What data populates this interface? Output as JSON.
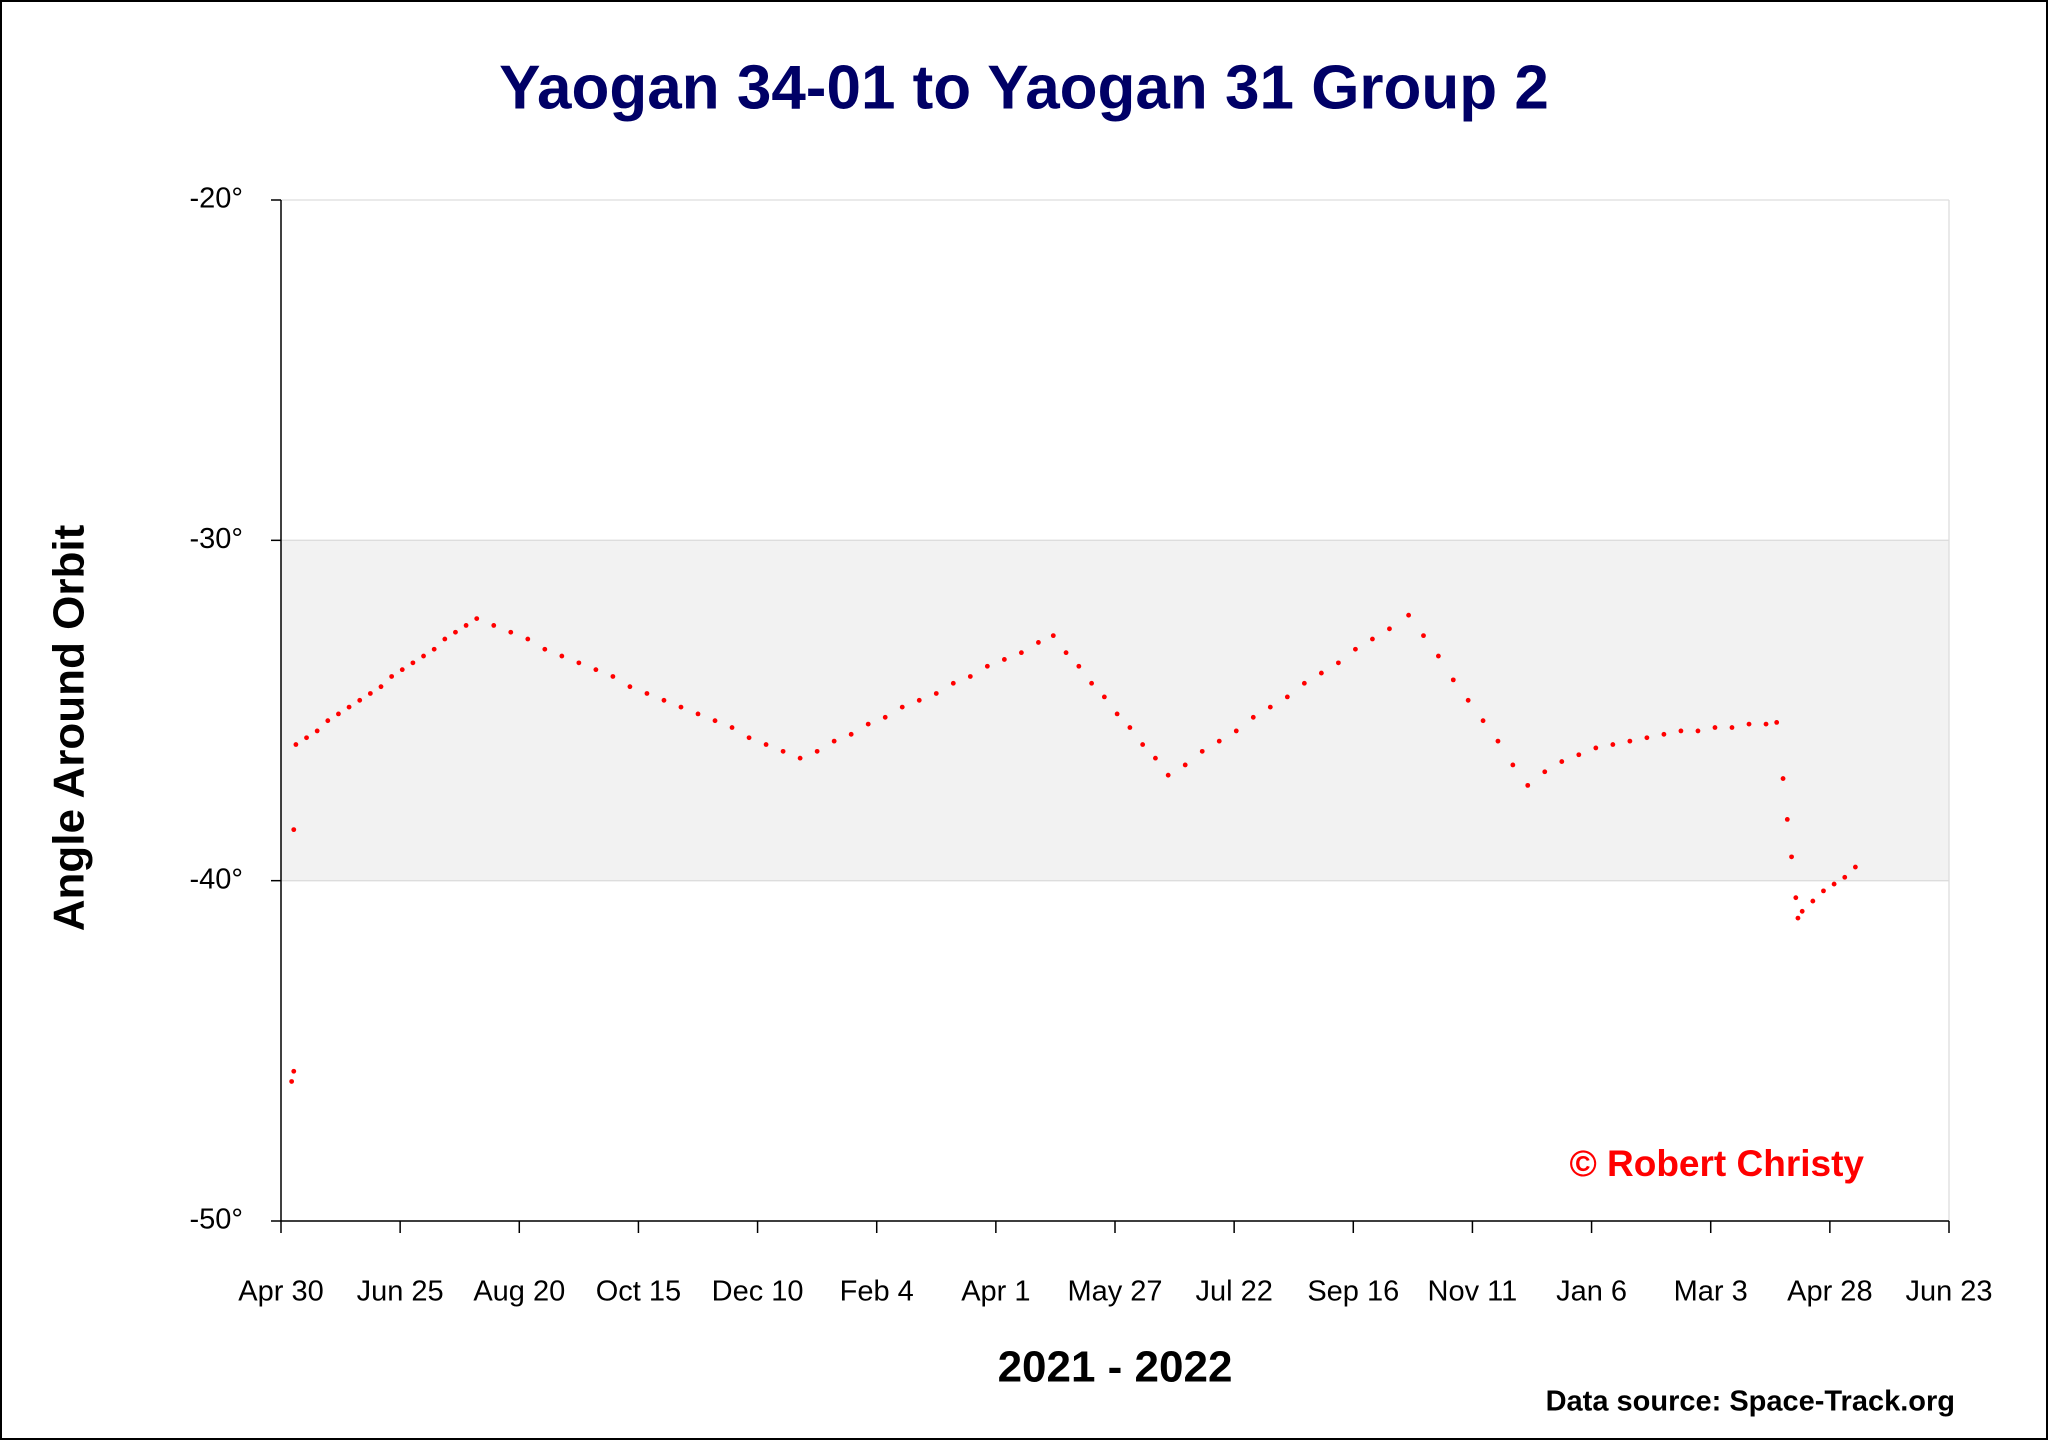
{
  "chart_data": {
    "type": "scatter",
    "title": "Yaogan 34-01 to Yaogan 31 Group 2",
    "x_label": "2021 - 2022",
    "y_label": "Angle Around Orbit",
    "annotations": [
      "© Robert Christy",
      "Data source: Space-Track.org"
    ],
    "xlim": [
      0,
      784
    ],
    "xticks": [
      {
        "value": 0,
        "label": "Apr 30"
      },
      {
        "value": 56,
        "label": "Jun 25"
      },
      {
        "value": 112,
        "label": "Aug 20"
      },
      {
        "value": 168,
        "label": "Oct 15"
      },
      {
        "value": 224,
        "label": "Dec 10"
      },
      {
        "value": 280,
        "label": "Feb 4"
      },
      {
        "value": 336,
        "label": "Apr 1"
      },
      {
        "value": 392,
        "label": "May 27"
      },
      {
        "value": 448,
        "label": "Jul 22"
      },
      {
        "value": 504,
        "label": "Sep 16"
      },
      {
        "value": 560,
        "label": "Nov 11"
      },
      {
        "value": 616,
        "label": "Jan 6"
      },
      {
        "value": 672,
        "label": "Mar 3"
      },
      {
        "value": 728,
        "label": "Apr 28"
      },
      {
        "value": 784,
        "label": "Jun 23"
      }
    ],
    "ylim": [
      -50,
      -20
    ],
    "yticks": [
      {
        "value": -20,
        "label": "-20°"
      },
      {
        "value": -30,
        "label": "-30°"
      },
      {
        "value": -40,
        "label": "-40°"
      },
      {
        "value": -50,
        "label": "-50°"
      }
    ],
    "shaded_range": [
      -40,
      -30
    ],
    "shaded_color": "#f2f2f2",
    "grid": true,
    "series": [
      {
        "name": "Yaogan 34-01",
        "color": "#ff0000",
        "x": [
          5,
          6,
          6,
          7,
          12,
          17,
          22,
          27,
          32,
          37,
          42,
          47,
          52,
          57,
          62,
          67,
          72,
          77,
          82,
          87,
          92,
          100,
          108,
          116,
          124,
          132,
          140,
          148,
          156,
          164,
          172,
          180,
          188,
          196,
          204,
          212,
          220,
          228,
          236,
          244,
          252,
          260,
          268,
          276,
          284,
          292,
          300,
          308,
          316,
          324,
          332,
          340,
          348,
          356,
          363,
          369,
          375,
          381,
          387,
          393,
          399,
          405,
          411,
          417,
          425,
          433,
          441,
          449,
          457,
          465,
          473,
          481,
          489,
          497,
          505,
          513,
          521,
          530,
          537,
          544,
          551,
          558,
          565,
          572,
          579,
          586,
          594,
          602,
          610,
          618,
          626,
          634,
          642,
          650,
          658,
          666,
          674,
          682,
          690,
          698,
          703,
          706,
          708,
          710,
          712,
          713,
          715,
          720,
          725,
          730,
          735,
          740
        ],
        "values": [
          -45.9,
          -45.6,
          -38.5,
          -36.0,
          -35.8,
          -35.6,
          -35.3,
          -35.1,
          -34.9,
          -34.7,
          -34.5,
          -34.3,
          -34.0,
          -33.8,
          -33.6,
          -33.4,
          -33.2,
          -32.9,
          -32.7,
          -32.5,
          -32.3,
          -32.5,
          -32.7,
          -32.9,
          -33.2,
          -33.4,
          -33.6,
          -33.8,
          -34.0,
          -34.3,
          -34.5,
          -34.7,
          -34.9,
          -35.1,
          -35.3,
          -35.5,
          -35.8,
          -36.0,
          -36.2,
          -36.4,
          -36.2,
          -35.9,
          -35.7,
          -35.4,
          -35.2,
          -34.9,
          -34.7,
          -34.5,
          -34.2,
          -34.0,
          -33.7,
          -33.5,
          -33.3,
          -33.0,
          -32.8,
          -33.3,
          -33.7,
          -34.2,
          -34.6,
          -35.1,
          -35.5,
          -36.0,
          -36.4,
          -36.9,
          -36.6,
          -36.2,
          -35.9,
          -35.6,
          -35.2,
          -34.9,
          -34.6,
          -34.2,
          -33.9,
          -33.6,
          -33.2,
          -32.9,
          -32.6,
          -32.2,
          -32.8,
          -33.4,
          -34.1,
          -34.7,
          -35.3,
          -35.9,
          -36.6,
          -37.2,
          -36.8,
          -36.5,
          -36.3,
          -36.1,
          -36.0,
          -35.9,
          -35.8,
          -35.7,
          -35.6,
          -35.6,
          -35.5,
          -35.5,
          -35.4,
          -35.4,
          -35.35,
          -37.0,
          -38.2,
          -39.3,
          -40.5,
          -41.1,
          -40.9,
          -40.6,
          -40.3,
          -40.1,
          -39.9,
          -39.6
        ]
      }
    ]
  }
}
